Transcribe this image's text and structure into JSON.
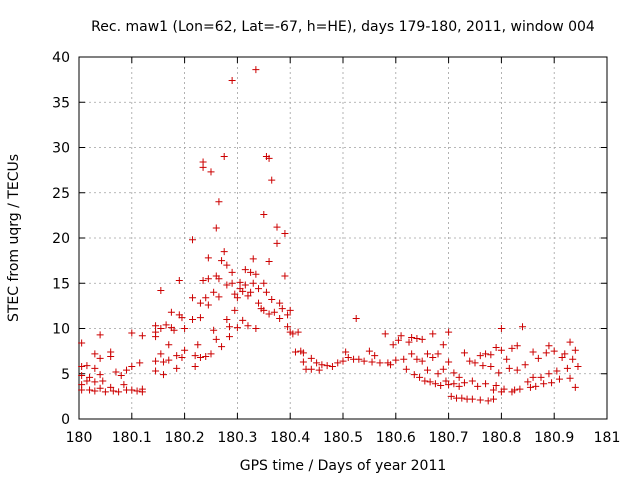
{
  "chart_data": {
    "type": "scatter",
    "title": "Rec. maw1 (Lon=62, Lat=-67, h=HE), days 179-180, 2011, window 004",
    "xlabel": "GPS time / Days of year 2011",
    "ylabel": "STEC from uqrg / TECUs",
    "xlim": [
      180,
      181
    ],
    "ylim": [
      0,
      40
    ],
    "xticks": [
      180,
      180.1,
      180.2,
      180.3,
      180.4,
      180.5,
      180.6,
      180.7,
      180.8,
      180.9,
      181
    ],
    "xtick_labels": [
      "180",
      "180.1",
      "180.2",
      "180.3",
      "180.4",
      "180.5",
      "180.6",
      "180.7",
      "180.8",
      "180.9",
      "181"
    ],
    "yticks": [
      0,
      5,
      10,
      15,
      20,
      25,
      30,
      35,
      40
    ],
    "ytick_labels": [
      "0",
      "5",
      "10",
      "15",
      "20",
      "25",
      "30",
      "35",
      "40"
    ],
    "grid": true,
    "marker": "plus",
    "color": "#cc0000",
    "points": [
      [
        180.005,
        8.4
      ],
      [
        180.005,
        5.8
      ],
      [
        180.005,
        4.8
      ],
      [
        180.005,
        3.8
      ],
      [
        180.005,
        3.2
      ],
      [
        180.015,
        5.9
      ],
      [
        180.015,
        4.2
      ],
      [
        180.02,
        4.6
      ],
      [
        180.02,
        3.2
      ],
      [
        180.03,
        7.2
      ],
      [
        180.03,
        5.6
      ],
      [
        180.03,
        4.1
      ],
      [
        180.03,
        3.1
      ],
      [
        180.04,
        9.3
      ],
      [
        180.04,
        6.7
      ],
      [
        180.04,
        4.9
      ],
      [
        180.04,
        3.4
      ],
      [
        180.045,
        4.2
      ],
      [
        180.05,
        3.0
      ],
      [
        180.06,
        7.4
      ],
      [
        180.06,
        6.9
      ],
      [
        180.06,
        3.5
      ],
      [
        180.065,
        3.1
      ],
      [
        180.07,
        5.2
      ],
      [
        180.075,
        3.0
      ],
      [
        180.08,
        4.8
      ],
      [
        180.085,
        3.8
      ],
      [
        180.09,
        5.4
      ],
      [
        180.09,
        3.2
      ],
      [
        180.1,
        9.5
      ],
      [
        180.1,
        5.8
      ],
      [
        180.1,
        3.2
      ],
      [
        180.11,
        3.1
      ],
      [
        180.115,
        6.2
      ],
      [
        180.12,
        9.2
      ],
      [
        180.12,
        3.0
      ],
      [
        180.12,
        3.3
      ],
      [
        180.145,
        9.1
      ],
      [
        180.145,
        10.3
      ],
      [
        180.145,
        9.6
      ],
      [
        180.145,
        6.4
      ],
      [
        180.145,
        5.3
      ],
      [
        180.155,
        14.2
      ],
      [
        180.155,
        10.0
      ],
      [
        180.155,
        7.2
      ],
      [
        180.16,
        6.3
      ],
      [
        180.16,
        4.9
      ],
      [
        180.165,
        10.4
      ],
      [
        180.17,
        8.2
      ],
      [
        180.17,
        6.5
      ],
      [
        180.175,
        11.8
      ],
      [
        180.175,
        10.1
      ],
      [
        180.18,
        9.8
      ],
      [
        180.185,
        7.0
      ],
      [
        180.185,
        5.6
      ],
      [
        180.19,
        15.3
      ],
      [
        180.19,
        11.5
      ],
      [
        180.195,
        11.2
      ],
      [
        180.195,
        6.8
      ],
      [
        180.2,
        10.0
      ],
      [
        180.2,
        7.6
      ],
      [
        180.215,
        19.8
      ],
      [
        180.215,
        13.4
      ],
      [
        180.215,
        11.0
      ],
      [
        180.22,
        7.0
      ],
      [
        180.22,
        5.8
      ],
      [
        180.225,
        8.2
      ],
      [
        180.23,
        12.8
      ],
      [
        180.23,
        11.2
      ],
      [
        180.23,
        6.8
      ],
      [
        180.235,
        28.4
      ],
      [
        180.235,
        27.8
      ],
      [
        180.235,
        15.3
      ],
      [
        180.24,
        13.4
      ],
      [
        180.24,
        6.9
      ],
      [
        180.245,
        17.8
      ],
      [
        180.245,
        15.5
      ],
      [
        180.245,
        12.6
      ],
      [
        180.25,
        27.3
      ],
      [
        180.25,
        7.2
      ],
      [
        180.255,
        14.0
      ],
      [
        180.255,
        9.8
      ],
      [
        180.26,
        21.1
      ],
      [
        180.26,
        15.8
      ],
      [
        180.26,
        8.8
      ],
      [
        180.265,
        24.0
      ],
      [
        180.265,
        15.5
      ],
      [
        180.265,
        13.5
      ],
      [
        180.27,
        17.5
      ],
      [
        180.27,
        8.0
      ],
      [
        180.275,
        29.0
      ],
      [
        180.275,
        18.5
      ],
      [
        180.28,
        17.0
      ],
      [
        180.28,
        14.8
      ],
      [
        180.28,
        11.0
      ],
      [
        180.285,
        10.2
      ],
      [
        180.285,
        9.1
      ],
      [
        180.29,
        16.2
      ],
      [
        180.29,
        15.0
      ],
      [
        180.29,
        37.4
      ],
      [
        180.295,
        13.8
      ],
      [
        180.295,
        12.0
      ],
      [
        180.3,
        13.4
      ],
      [
        180.3,
        10.1
      ],
      [
        180.305,
        15.1
      ],
      [
        180.305,
        14.4
      ],
      [
        180.31,
        14.1
      ],
      [
        180.31,
        10.9
      ],
      [
        180.315,
        16.5
      ],
      [
        180.315,
        14.8
      ],
      [
        180.32,
        13.6
      ],
      [
        180.32,
        10.3
      ],
      [
        180.325,
        16.2
      ],
      [
        180.325,
        14.0
      ],
      [
        180.33,
        17.7
      ],
      [
        180.33,
        15.0
      ],
      [
        180.335,
        38.6
      ],
      [
        180.335,
        16.0
      ],
      [
        180.335,
        10.0
      ],
      [
        180.34,
        14.4
      ],
      [
        180.34,
        12.8
      ],
      [
        180.345,
        12.2
      ],
      [
        180.35,
        22.6
      ],
      [
        180.35,
        15.0
      ],
      [
        180.35,
        12.0
      ],
      [
        180.355,
        29.0
      ],
      [
        180.355,
        14.0
      ],
      [
        180.36,
        28.8
      ],
      [
        180.36,
        17.4
      ],
      [
        180.36,
        11.6
      ],
      [
        180.365,
        26.4
      ],
      [
        180.365,
        13.2
      ],
      [
        180.37,
        11.8
      ],
      [
        180.375,
        19.4
      ],
      [
        180.375,
        21.2
      ],
      [
        180.38,
        12.8
      ],
      [
        180.38,
        11.1
      ],
      [
        180.385,
        12.2
      ],
      [
        180.39,
        20.5
      ],
      [
        180.39,
        15.8
      ],
      [
        180.395,
        11.5
      ],
      [
        180.395,
        10.2
      ],
      [
        180.4,
        9.6
      ],
      [
        180.4,
        12.0
      ],
      [
        180.405,
        9.4
      ],
      [
        180.41,
        7.4
      ],
      [
        180.415,
        9.6
      ],
      [
        180.42,
        7.5
      ],
      [
        180.425,
        7.3
      ],
      [
        180.425,
        6.3
      ],
      [
        180.43,
        5.5
      ],
      [
        180.44,
        6.7
      ],
      [
        180.44,
        5.5
      ],
      [
        180.45,
        6.2
      ],
      [
        180.455,
        5.4
      ],
      [
        180.46,
        6.0
      ],
      [
        180.47,
        5.9
      ],
      [
        180.48,
        5.8
      ],
      [
        180.49,
        6.2
      ],
      [
        180.5,
        6.4
      ],
      [
        180.505,
        7.4
      ],
      [
        180.51,
        6.8
      ],
      [
        180.52,
        6.6
      ],
      [
        180.525,
        11.1
      ],
      [
        180.53,
        6.6
      ],
      [
        180.54,
        6.4
      ],
      [
        180.55,
        7.5
      ],
      [
        180.555,
        6.3
      ],
      [
        180.56,
        7.0
      ],
      [
        180.57,
        6.2
      ],
      [
        180.58,
        9.4
      ],
      [
        180.585,
        6.2
      ],
      [
        180.59,
        6.0
      ],
      [
        180.595,
        8.2
      ],
      [
        180.6,
        6.5
      ],
      [
        180.605,
        8.7
      ],
      [
        180.61,
        9.2
      ],
      [
        180.615,
        6.6
      ],
      [
        180.62,
        5.5
      ],
      [
        180.625,
        8.5
      ],
      [
        180.63,
        9.0
      ],
      [
        180.63,
        7.2
      ],
      [
        180.635,
        4.9
      ],
      [
        180.64,
        8.9
      ],
      [
        180.64,
        6.6
      ],
      [
        180.645,
        4.6
      ],
      [
        180.65,
        8.8
      ],
      [
        180.65,
        6.4
      ],
      [
        180.655,
        4.2
      ],
      [
        180.66,
        7.2
      ],
      [
        180.66,
        5.4
      ],
      [
        180.665,
        4.1
      ],
      [
        180.67,
        9.4
      ],
      [
        180.67,
        6.8
      ],
      [
        180.675,
        3.9
      ],
      [
        180.68,
        7.2
      ],
      [
        180.68,
        5.0
      ],
      [
        180.685,
        3.7
      ],
      [
        180.69,
        8.2
      ],
      [
        180.69,
        5.5
      ],
      [
        180.695,
        4.2
      ],
      [
        180.7,
        9.6
      ],
      [
        180.7,
        6.3
      ],
      [
        180.7,
        3.8
      ],
      [
        180.705,
        2.5
      ],
      [
        180.71,
        5.1
      ],
      [
        180.71,
        3.9
      ],
      [
        180.715,
        2.3
      ],
      [
        180.72,
        4.6
      ],
      [
        180.72,
        3.6
      ],
      [
        180.725,
        2.3
      ],
      [
        180.73,
        7.3
      ],
      [
        180.73,
        4.0
      ],
      [
        180.735,
        2.2
      ],
      [
        180.74,
        6.4
      ],
      [
        180.745,
        4.2
      ],
      [
        180.745,
        2.2
      ],
      [
        180.75,
        6.2
      ],
      [
        180.755,
        3.6
      ],
      [
        180.76,
        7.0
      ],
      [
        180.76,
        2.1
      ],
      [
        180.765,
        5.9
      ],
      [
        180.77,
        7.2
      ],
      [
        180.77,
        3.9
      ],
      [
        180.775,
        2.0
      ],
      [
        180.78,
        7.1
      ],
      [
        180.78,
        5.8
      ],
      [
        180.785,
        3.2
      ],
      [
        180.785,
        2.2
      ],
      [
        180.79,
        7.9
      ],
      [
        180.79,
        3.7
      ],
      [
        180.795,
        5.1
      ],
      [
        180.8,
        10.0
      ],
      [
        180.8,
        7.6
      ],
      [
        180.8,
        3.0
      ],
      [
        180.805,
        3.3
      ],
      [
        180.81,
        6.6
      ],
      [
        180.815,
        5.6
      ],
      [
        180.82,
        7.8
      ],
      [
        180.82,
        3.0
      ],
      [
        180.825,
        3.2
      ],
      [
        180.83,
        8.1
      ],
      [
        180.83,
        5.4
      ],
      [
        180.835,
        3.3
      ],
      [
        180.84,
        10.2
      ],
      [
        180.845,
        6.0
      ],
      [
        180.85,
        4.1
      ],
      [
        180.855,
        3.5
      ],
      [
        180.86,
        7.4
      ],
      [
        180.86,
        4.6
      ],
      [
        180.865,
        3.6
      ],
      [
        180.87,
        6.7
      ],
      [
        180.875,
        4.6
      ],
      [
        180.88,
        3.9
      ],
      [
        180.885,
        7.3
      ],
      [
        180.89,
        8.1
      ],
      [
        180.89,
        5.0
      ],
      [
        180.895,
        4.0
      ],
      [
        180.9,
        7.5
      ],
      [
        180.905,
        5.3
      ],
      [
        180.91,
        4.4
      ],
      [
        180.915,
        6.8
      ],
      [
        180.92,
        7.2
      ],
      [
        180.925,
        5.6
      ],
      [
        180.93,
        8.5
      ],
      [
        180.93,
        4.5
      ],
      [
        180.935,
        6.6
      ],
      [
        180.94,
        7.6
      ],
      [
        180.94,
        3.5
      ],
      [
        180.945,
        5.8
      ]
    ]
  }
}
